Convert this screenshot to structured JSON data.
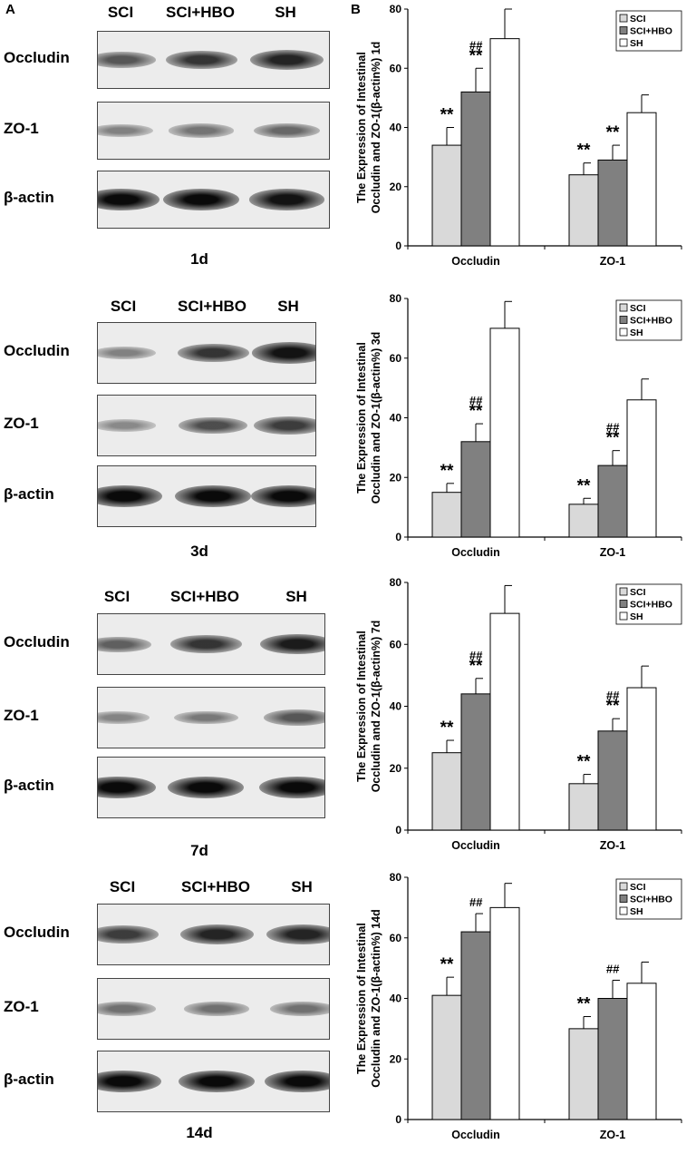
{
  "panel_letters": {
    "a": "A",
    "b": "B"
  },
  "blots": [
    {
      "time": "1d",
      "lanes": [
        "SCI",
        "SCI+HBO",
        "SH"
      ],
      "rows": [
        "Occludin",
        "ZO-1",
        "β-actin"
      ]
    },
    {
      "time": "3d",
      "lanes": [
        "SCI",
        "SCI+HBO",
        "SH"
      ],
      "rows": [
        "Occludin",
        "ZO-1",
        "β-actin"
      ]
    },
    {
      "time": "7d",
      "lanes": [
        "SCI",
        "SCI+HBO",
        "SH"
      ],
      "rows": [
        "Occludin",
        "ZO-1",
        "β-actin"
      ]
    },
    {
      "time": "14d",
      "lanes": [
        "SCI",
        "SCI+HBO",
        "SH"
      ],
      "rows": [
        "Occludin",
        "ZO-1",
        "β-actin"
      ]
    }
  ],
  "band_intensity": [
    [
      [
        0.55,
        0.75,
        0.85
      ],
      [
        0.3,
        0.38,
        0.45
      ],
      [
        1.0,
        1.0,
        0.95
      ]
    ],
    [
      [
        0.3,
        0.75,
        0.95
      ],
      [
        0.25,
        0.6,
        0.7
      ],
      [
        1.0,
        1.0,
        1.0
      ]
    ],
    [
      [
        0.5,
        0.75,
        0.9
      ],
      [
        0.28,
        0.35,
        0.55
      ],
      [
        1.0,
        1.0,
        1.0
      ]
    ],
    [
      [
        0.7,
        0.85,
        0.85
      ],
      [
        0.4,
        0.4,
        0.4
      ],
      [
        1.0,
        1.0,
        1.0
      ]
    ]
  ],
  "legend": [
    "SCI",
    "SCI+HBO",
    "SH"
  ],
  "colors": {
    "SCI": "#d9d9d9",
    "SCI+HBO": "#808080",
    "SH": "#ffffff"
  },
  "chart_data": [
    {
      "type": "bar",
      "ylabel_line1": "The Expression of Intestinal",
      "ylabel_line2": "Occludin and ZO-1(β-actin%) 1d",
      "categories": [
        "Occludin",
        "ZO-1"
      ],
      "ylim": [
        0,
        80
      ],
      "yticks": [
        0,
        20,
        40,
        60,
        80
      ],
      "series": [
        {
          "name": "SCI",
          "values": [
            34,
            24
          ],
          "errors": [
            6,
            4
          ],
          "marks": [
            "**",
            "**"
          ]
        },
        {
          "name": "SCI+HBO",
          "values": [
            52,
            29
          ],
          "errors": [
            8,
            5
          ],
          "marks": [
            "##\n**",
            "**"
          ]
        },
        {
          "name": "SH",
          "values": [
            70,
            45
          ],
          "errors": [
            10,
            6
          ],
          "marks": [
            "",
            ""
          ]
        }
      ]
    },
    {
      "type": "bar",
      "ylabel_line1": "The Expression of Intestinal",
      "ylabel_line2": "Occludin and ZO-1(β-actin%) 3d",
      "categories": [
        "Occludin",
        "ZO-1"
      ],
      "ylim": [
        0,
        80
      ],
      "yticks": [
        0,
        20,
        40,
        60,
        80
      ],
      "series": [
        {
          "name": "SCI",
          "values": [
            15,
            11
          ],
          "errors": [
            3,
            2
          ],
          "marks": [
            "**",
            "**"
          ]
        },
        {
          "name": "SCI+HBO",
          "values": [
            32,
            24
          ],
          "errors": [
            6,
            5
          ],
          "marks": [
            "##\n**",
            "##\n**"
          ]
        },
        {
          "name": "SH",
          "values": [
            70,
            46
          ],
          "errors": [
            9,
            7
          ],
          "marks": [
            "",
            ""
          ]
        }
      ]
    },
    {
      "type": "bar",
      "ylabel_line1": "The  Expression of Intestinal",
      "ylabel_line2": "Occludin and  ZO-1(β-actin%) 7d",
      "categories": [
        "Occludin",
        "ZO-1"
      ],
      "ylim": [
        0,
        80
      ],
      "yticks": [
        0,
        20,
        40,
        60,
        80
      ],
      "series": [
        {
          "name": "SCI",
          "values": [
            25,
            15
          ],
          "errors": [
            4,
            3
          ],
          "marks": [
            "**",
            "**"
          ]
        },
        {
          "name": "SCI+HBO",
          "values": [
            44,
            32
          ],
          "errors": [
            5,
            4
          ],
          "marks": [
            "##\n**",
            "##\n**"
          ]
        },
        {
          "name": "SH",
          "values": [
            70,
            46
          ],
          "errors": [
            9,
            7
          ],
          "marks": [
            "",
            ""
          ]
        }
      ]
    },
    {
      "type": "bar",
      "ylabel_line1": "The Expression of Intestinal",
      "ylabel_line2": "Occludin and ZO-1(β-actin%) 14d",
      "categories": [
        "Occludin",
        "ZO-1"
      ],
      "ylim": [
        0,
        80
      ],
      "yticks": [
        0,
        20,
        40,
        60,
        80
      ],
      "series": [
        {
          "name": "SCI",
          "values": [
            41,
            30
          ],
          "errors": [
            6,
            4
          ],
          "marks": [
            "**",
            "**"
          ]
        },
        {
          "name": "SCI+HBO",
          "values": [
            62,
            40
          ],
          "errors": [
            6,
            6
          ],
          "marks": [
            "##",
            "##"
          ]
        },
        {
          "name": "SH",
          "values": [
            70,
            45
          ],
          "errors": [
            8,
            7
          ],
          "marks": [
            "",
            ""
          ]
        }
      ]
    }
  ]
}
